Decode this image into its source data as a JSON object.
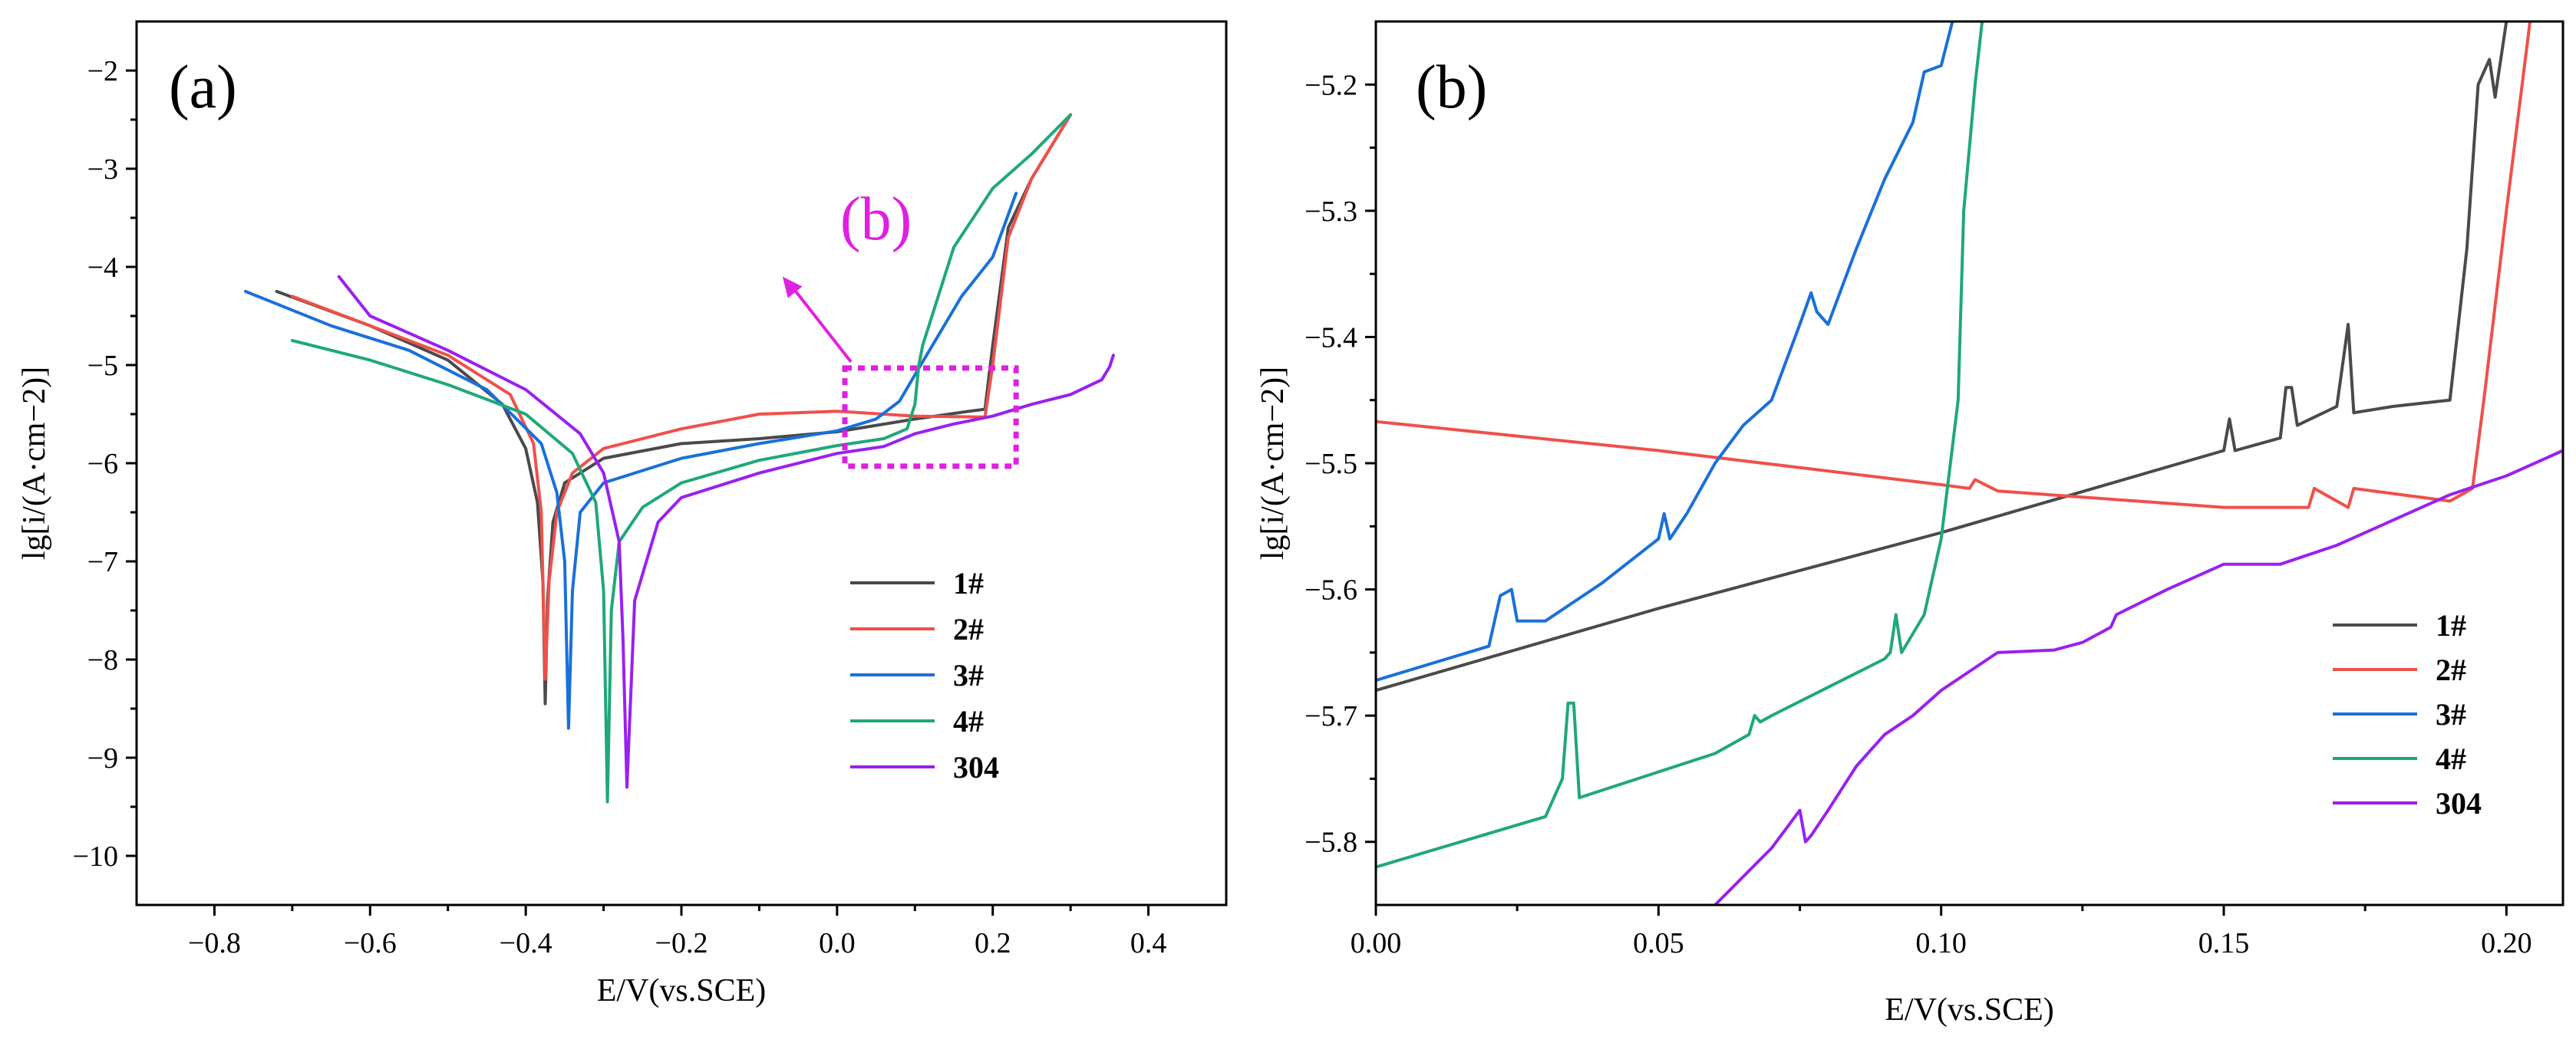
{
  "chart_data": [
    {
      "type": "line",
      "panel_label": "(a)",
      "xlabel": "E/V(vs.SCE)",
      "ylabel": "lg[i/(A·cm−2)]",
      "xlim": [
        -0.9,
        0.5
      ],
      "ylim": [
        -10.5,
        -1.5
      ],
      "xticks": [
        -0.8,
        -0.6,
        -0.4,
        -0.2,
        0.0,
        0.2,
        0.4
      ],
      "xtick_labels": [
        "−0.8",
        "−0.6",
        "−0.4",
        "−0.2",
        "0.0",
        "0.2",
        "0.4"
      ],
      "yticks": [
        -10,
        -9,
        -8,
        -7,
        -6,
        -5,
        -4,
        -3,
        -2
      ],
      "ytick_labels": [
        "−10",
        "−9",
        "−8",
        "−7",
        "−6",
        "−5",
        "−4",
        "−3",
        "−2"
      ],
      "legend_position": "bottom-right",
      "annotation": {
        "text": "(b)",
        "color": "#e020e0",
        "box_x": [
          0.01,
          0.23
        ],
        "box_y": [
          -6.03,
          -5.03
        ],
        "label_at": [
          0.05,
          -3.72
        ],
        "arrow_to": [
          -0.07,
          -4.1
        ]
      },
      "series": [
        {
          "name": "1#",
          "color": "#4a4a4a",
          "x": [
            -0.72,
            -0.6,
            -0.5,
            -0.43,
            -0.4,
            -0.385,
            -0.378,
            -0.375,
            -0.372,
            -0.365,
            -0.35,
            -0.3,
            -0.2,
            -0.1,
            0.0,
            0.1,
            0.17,
            0.19,
            0.2,
            0.22,
            0.25,
            0.3
          ],
          "y": [
            -4.25,
            -4.6,
            -4.95,
            -5.4,
            -5.85,
            -6.4,
            -7.2,
            -8.45,
            -7.4,
            -6.6,
            -6.2,
            -5.95,
            -5.8,
            -5.75,
            -5.68,
            -5.55,
            -5.47,
            -5.45,
            -4.8,
            -3.6,
            -3.1,
            -2.45
          ]
        },
        {
          "name": "2#",
          "color": "#f0504a",
          "x": [
            -0.7,
            -0.6,
            -0.5,
            -0.42,
            -0.39,
            -0.38,
            -0.375,
            -0.37,
            -0.36,
            -0.34,
            -0.3,
            -0.2,
            -0.1,
            0.0,
            0.1,
            0.19,
            0.2,
            0.22,
            0.25,
            0.3
          ],
          "y": [
            -4.3,
            -4.6,
            -4.9,
            -5.3,
            -5.8,
            -6.5,
            -8.2,
            -7.2,
            -6.5,
            -6.1,
            -5.85,
            -5.65,
            -5.5,
            -5.47,
            -5.52,
            -5.53,
            -5.0,
            -3.7,
            -3.1,
            -2.45
          ]
        },
        {
          "name": "3#",
          "color": "#1a70d8",
          "x": [
            -0.76,
            -0.65,
            -0.55,
            -0.45,
            -0.38,
            -0.36,
            -0.35,
            -0.345,
            -0.34,
            -0.33,
            -0.3,
            -0.2,
            -0.1,
            0.0,
            0.05,
            0.08,
            0.1,
            0.13,
            0.16,
            0.2,
            0.23
          ],
          "y": [
            -4.25,
            -4.6,
            -4.85,
            -5.25,
            -5.8,
            -6.3,
            -7.0,
            -8.7,
            -7.3,
            -6.5,
            -6.2,
            -5.95,
            -5.8,
            -5.67,
            -5.55,
            -5.37,
            -5.1,
            -4.7,
            -4.3,
            -3.9,
            -3.25
          ]
        },
        {
          "name": "4#",
          "color": "#20a878",
          "x": [
            -0.7,
            -0.6,
            -0.5,
            -0.4,
            -0.34,
            -0.31,
            -0.3,
            -0.295,
            -0.29,
            -0.28,
            -0.25,
            -0.2,
            -0.1,
            0.0,
            0.06,
            0.09,
            0.1,
            0.105,
            0.11,
            0.15,
            0.2,
            0.25,
            0.3
          ],
          "y": [
            -4.75,
            -4.95,
            -5.2,
            -5.5,
            -5.9,
            -6.4,
            -7.3,
            -9.45,
            -7.5,
            -6.8,
            -6.45,
            -6.2,
            -5.97,
            -5.82,
            -5.75,
            -5.65,
            -5.4,
            -5.0,
            -4.8,
            -3.8,
            -3.2,
            -2.85,
            -2.45
          ]
        },
        {
          "name": "304",
          "color": "#9a20f0",
          "x": [
            -0.64,
            -0.6,
            -0.5,
            -0.4,
            -0.33,
            -0.3,
            -0.28,
            -0.275,
            -0.27,
            -0.26,
            -0.23,
            -0.2,
            -0.1,
            0.0,
            0.06,
            0.1,
            0.15,
            0.2,
            0.25,
            0.3,
            0.34,
            0.35,
            0.355
          ],
          "y": [
            -4.1,
            -4.5,
            -4.85,
            -5.25,
            -5.7,
            -6.1,
            -6.8,
            -7.8,
            -9.3,
            -7.4,
            -6.6,
            -6.35,
            -6.1,
            -5.9,
            -5.83,
            -5.7,
            -5.6,
            -5.52,
            -5.4,
            -5.3,
            -5.15,
            -5.02,
            -4.9
          ]
        }
      ]
    },
    {
      "type": "line",
      "panel_label": "(b)",
      "xlabel": "E/V(vs.SCE)",
      "ylabel": "lg[i/(A·cm−2)]",
      "xlim": [
        0.0,
        0.21
      ],
      "ylim": [
        -5.85,
        -5.15
      ],
      "xticks": [
        0.0,
        0.05,
        0.1,
        0.15,
        0.2
      ],
      "xtick_labels": [
        "0.00",
        "0.05",
        "0.10",
        "0.15",
        "0.20"
      ],
      "yticks": [
        -5.8,
        -5.7,
        -5.6,
        -5.5,
        -5.4,
        -5.3,
        -5.2
      ],
      "ytick_labels": [
        "−5.8",
        "−5.7",
        "−5.6",
        "−5.5",
        "−5.4",
        "−5.3",
        "−5.2"
      ],
      "legend_position": "bottom-right",
      "series": [
        {
          "name": "1#",
          "color": "#4a4a4a",
          "x": [
            0.0,
            0.05,
            0.1,
            0.15,
            0.151,
            0.152,
            0.16,
            0.161,
            0.162,
            0.163,
            0.17,
            0.172,
            0.173,
            0.18,
            0.19,
            0.193,
            0.195,
            0.197,
            0.198,
            0.2,
            0.201
          ],
          "y": [
            -5.68,
            -5.615,
            -5.555,
            -5.49,
            -5.465,
            -5.49,
            -5.48,
            -5.44,
            -5.44,
            -5.47,
            -5.455,
            -5.39,
            -5.46,
            -5.455,
            -5.45,
            -5.33,
            -5.2,
            -5.18,
            -5.21,
            -5.15,
            -5.12
          ]
        },
        {
          "name": "2#",
          "color": "#f0504a",
          "x": [
            0.0,
            0.05,
            0.1,
            0.105,
            0.106,
            0.11,
            0.15,
            0.165,
            0.166,
            0.172,
            0.173,
            0.19,
            0.194,
            0.196,
            0.2,
            0.205
          ],
          "y": [
            -5.467,
            -5.49,
            -5.517,
            -5.52,
            -5.513,
            -5.522,
            -5.535,
            -5.535,
            -5.52,
            -5.535,
            -5.52,
            -5.53,
            -5.52,
            -5.45,
            -5.3,
            -5.12
          ]
        },
        {
          "name": "3#",
          "color": "#1a70d8",
          "x": [
            0.0,
            0.02,
            0.022,
            0.024,
            0.025,
            0.03,
            0.04,
            0.05,
            0.051,
            0.052,
            0.055,
            0.06,
            0.065,
            0.07,
            0.075,
            0.077,
            0.078,
            0.08,
            0.085,
            0.09,
            0.095,
            0.097,
            0.1,
            0.102
          ],
          "y": [
            -5.672,
            -5.645,
            -5.605,
            -5.6,
            -5.625,
            -5.625,
            -5.595,
            -5.56,
            -5.54,
            -5.56,
            -5.54,
            -5.5,
            -5.47,
            -5.45,
            -5.39,
            -5.365,
            -5.38,
            -5.39,
            -5.33,
            -5.275,
            -5.23,
            -5.19,
            -5.185,
            -5.15
          ]
        },
        {
          "name": "4#",
          "color": "#20a878",
          "x": [
            0.0,
            0.03,
            0.033,
            0.034,
            0.035,
            0.036,
            0.06,
            0.066,
            0.067,
            0.068,
            0.07,
            0.09,
            0.091,
            0.092,
            0.093,
            0.097,
            0.1,
            0.103,
            0.104,
            0.106,
            0.108
          ],
          "y": [
            -5.82,
            -5.78,
            -5.75,
            -5.69,
            -5.69,
            -5.765,
            -5.73,
            -5.715,
            -5.7,
            -5.705,
            -5.7,
            -5.655,
            -5.65,
            -5.62,
            -5.65,
            -5.62,
            -5.56,
            -5.45,
            -5.3,
            -5.2,
            -5.12
          ]
        },
        {
          "name": "304",
          "color": "#9a20f0",
          "x": [
            0.06,
            0.07,
            0.075,
            0.076,
            0.077,
            0.08,
            0.085,
            0.09,
            0.095,
            0.1,
            0.11,
            0.12,
            0.125,
            0.13,
            0.131,
            0.14,
            0.15,
            0.16,
            0.17,
            0.18,
            0.19,
            0.2,
            0.21
          ],
          "y": [
            -5.85,
            -5.805,
            -5.775,
            -5.8,
            -5.795,
            -5.775,
            -5.74,
            -5.715,
            -5.7,
            -5.68,
            -5.65,
            -5.648,
            -5.642,
            -5.63,
            -5.62,
            -5.6,
            -5.58,
            -5.58,
            -5.565,
            -5.545,
            -5.525,
            -5.51,
            -5.49
          ]
        }
      ]
    }
  ]
}
